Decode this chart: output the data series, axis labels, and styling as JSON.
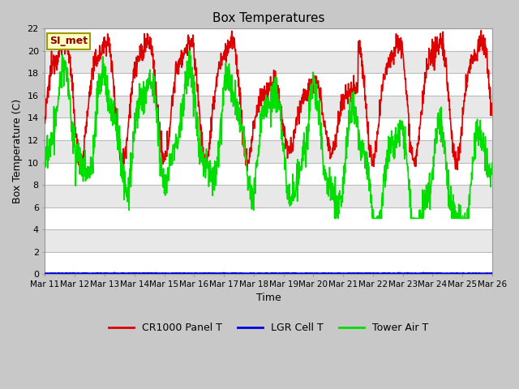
{
  "title": "Box Temperatures",
  "xlabel": "Time",
  "ylabel": "Box Temperature (C)",
  "ylim": [
    0,
    22
  ],
  "yticks": [
    0,
    2,
    4,
    6,
    8,
    10,
    12,
    14,
    16,
    18,
    20,
    22
  ],
  "x_labels": [
    "Mar 11",
    "Mar 12",
    "Mar 13",
    "Mar 14",
    "Mar 15",
    "Mar 16",
    "Mar 17",
    "Mar 18",
    "Mar 19",
    "Mar 20",
    "Mar 21",
    "Mar 22",
    "Mar 23",
    "Mar 24",
    "Mar 25",
    "Mar 26"
  ],
  "annotation_text": "SI_met",
  "annotation_color": "#8B0000",
  "annotation_bg": "#FFFFC0",
  "annotation_border": "#999900",
  "fig_bg": "#C8C8C8",
  "plot_bg": "#E8E8E8",
  "alt_band_color": "#D8D8D8",
  "grid_color": "#CCCCCC",
  "series_colors": {
    "CR1000 Panel T": "#DD0000",
    "LGR Cell T": "#0000DD",
    "Tower Air T": "#00DD00"
  },
  "legend_colors": {
    "CR1000 Panel T": "#DD0000",
    "LGR Cell T": "#0000DD",
    "Tower Air T": "#00DD00"
  }
}
